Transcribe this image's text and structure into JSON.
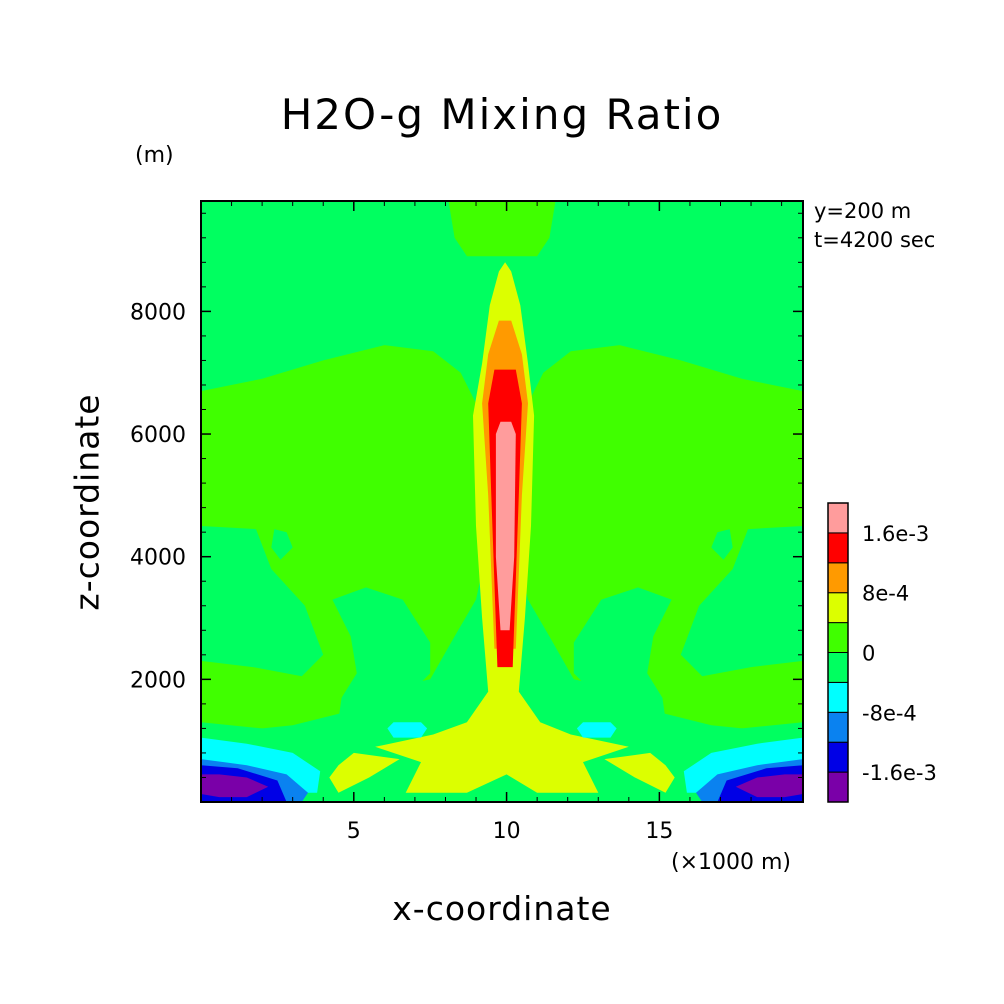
{
  "chart_data": {
    "type": "contour",
    "title": "H2O-g Mixing Ratio",
    "xlabel": "x-coordinate",
    "xunit": "(×1000 m)",
    "ylabel": "z-coordinate",
    "yunit": "(m)",
    "annotations": [
      "y=200 m",
      "t=4200 sec"
    ],
    "xlim": [
      0,
      19.7
    ],
    "ylim": [
      0,
      9800
    ],
    "xticks": [
      5,
      10,
      15
    ],
    "yticks": [
      2000,
      4000,
      6000,
      8000
    ],
    "colorbar": {
      "levels": [
        -0.002,
        -0.0016,
        -0.0012,
        -0.0008,
        -0.0004,
        0,
        0.0004,
        0.0008,
        0.0012,
        0.0016,
        0.002
      ],
      "colors": [
        "#7a00a8",
        "#0000e6",
        "#0a82f0",
        "#00ffff",
        "#00ff60",
        "#40ff00",
        "#dcff00",
        "#ff9a00",
        "#ff0000",
        "#ff9c9c"
      ],
      "tick_labels": [
        "-1.6e-3",
        "-8e-4",
        "0",
        "8e-4",
        "1.6e-3"
      ],
      "tick_values": [
        -0.0016,
        -0.0008,
        0,
        0.0008,
        0.0016
      ]
    },
    "regions": [
      {
        "level": 0,
        "polygon": [
          [
            0,
            6700
          ],
          [
            2,
            6900
          ],
          [
            4,
            7200
          ],
          [
            6,
            7450
          ],
          [
            7.6,
            7350
          ],
          [
            8.5,
            7000
          ],
          [
            9,
            6500
          ],
          [
            9.3,
            5500
          ],
          [
            9.3,
            4000
          ],
          [
            9,
            3300
          ],
          [
            8.3,
            2700
          ],
          [
            7.5,
            2000
          ],
          [
            5.7,
            1800
          ],
          [
            5,
            1500
          ],
          [
            3,
            1250
          ],
          [
            1,
            1150
          ],
          [
            0,
            1150
          ]
        ]
      },
      {
        "level": 0,
        "polygon": [
          [
            19.7,
            6700
          ],
          [
            17.7,
            6900
          ],
          [
            15.7,
            7200
          ],
          [
            13.7,
            7450
          ],
          [
            12.1,
            7350
          ],
          [
            11.2,
            7000
          ],
          [
            10.7,
            6500
          ],
          [
            10.4,
            5500
          ],
          [
            10.4,
            4000
          ],
          [
            10.7,
            3300
          ],
          [
            11.4,
            2700
          ],
          [
            12.2,
            2000
          ],
          [
            14,
            1800
          ],
          [
            14.7,
            1500
          ],
          [
            16.7,
            1250
          ],
          [
            18.7,
            1150
          ],
          [
            19.7,
            1150
          ]
        ]
      },
      {
        "level": 0,
        "polygon": [
          [
            8.1,
            9800
          ],
          [
            8.3,
            9200
          ],
          [
            8.7,
            8900
          ],
          [
            11,
            8900
          ],
          [
            11.4,
            9200
          ],
          [
            11.6,
            9800
          ]
        ]
      },
      {
        "level": 0,
        "polygon": [
          [
            2.3,
            2200
          ],
          [
            3.3,
            2700
          ],
          [
            4.3,
            3100
          ],
          [
            5,
            2700
          ],
          [
            6,
            2500
          ],
          [
            6.6,
            2700
          ],
          [
            7,
            2300
          ],
          [
            6.2,
            1700
          ],
          [
            4.4,
            1900
          ],
          [
            3,
            2100
          ]
        ]
      },
      {
        "level": 0,
        "polygon": [
          [
            17.4,
            2200
          ],
          [
            16.4,
            2700
          ],
          [
            15.4,
            3100
          ],
          [
            14.7,
            2700
          ],
          [
            13.7,
            2500
          ],
          [
            13.1,
            2700
          ],
          [
            12.7,
            2300
          ],
          [
            13.5,
            1700
          ],
          [
            15.3,
            1900
          ],
          [
            16.7,
            2100
          ]
        ]
      },
      {
        "level": -0.0004,
        "polygon": [
          [
            0,
            4500
          ],
          [
            1.8,
            4450
          ],
          [
            2.3,
            3800
          ],
          [
            3.4,
            3200
          ],
          [
            4,
            2400
          ],
          [
            3.3,
            2050
          ],
          [
            1.7,
            2200
          ],
          [
            0,
            2300
          ]
        ]
      },
      {
        "level": -0.0004,
        "polygon": [
          [
            19.7,
            4500
          ],
          [
            17.9,
            4450
          ],
          [
            17.4,
            3800
          ],
          [
            16.3,
            3200
          ],
          [
            15.7,
            2400
          ],
          [
            16.4,
            2050
          ],
          [
            18,
            2200
          ],
          [
            19.7,
            2300
          ]
        ]
      },
      {
        "level": -0.0004,
        "polygon": [
          [
            4.3,
            3300
          ],
          [
            5.4,
            3500
          ],
          [
            6.6,
            3300
          ],
          [
            7.5,
            2600
          ],
          [
            7.5,
            2100
          ],
          [
            6.5,
            1600
          ],
          [
            5.5,
            1300
          ],
          [
            4.5,
            1350
          ],
          [
            4.6,
            1700
          ],
          [
            5.1,
            2100
          ],
          [
            4.9,
            2700
          ]
        ]
      },
      {
        "level": -0.0004,
        "polygon": [
          [
            15.4,
            3300
          ],
          [
            14.3,
            3500
          ],
          [
            13.1,
            3300
          ],
          [
            12.2,
            2600
          ],
          [
            12.2,
            2100
          ],
          [
            13.2,
            1600
          ],
          [
            14.2,
            1300
          ],
          [
            15.2,
            1350
          ],
          [
            15.1,
            1700
          ],
          [
            14.6,
            2100
          ],
          [
            14.8,
            2700
          ]
        ]
      },
      {
        "level": -0.0004,
        "polygon": [
          [
            2.4,
            4450
          ],
          [
            2.8,
            4400
          ],
          [
            3,
            4150
          ],
          [
            2.6,
            3950
          ],
          [
            2.3,
            4150
          ]
        ]
      },
      {
        "level": -0.0004,
        "polygon": [
          [
            17.3,
            4450
          ],
          [
            16.9,
            4400
          ],
          [
            16.7,
            4150
          ],
          [
            17.1,
            3950
          ],
          [
            17.4,
            4150
          ]
        ]
      },
      {
        "level": -0.0004,
        "polygon": [
          [
            0,
            1300
          ],
          [
            2,
            1200
          ],
          [
            3.4,
            1000
          ],
          [
            4,
            700
          ],
          [
            3.2,
            450
          ],
          [
            0,
            450
          ]
        ]
      },
      {
        "level": -0.0004,
        "polygon": [
          [
            19.7,
            1300
          ],
          [
            17.7,
            1200
          ],
          [
            16.3,
            1000
          ],
          [
            15.7,
            700
          ],
          [
            16.5,
            450
          ],
          [
            19.7,
            450
          ]
        ]
      },
      {
        "level": 0.0004,
        "polygon": [
          [
            9.2,
            7150
          ],
          [
            9.45,
            8100
          ],
          [
            9.75,
            8650
          ],
          [
            9.95,
            8800
          ],
          [
            10.15,
            8650
          ],
          [
            10.45,
            8100
          ],
          [
            10.7,
            7150
          ],
          [
            10.9,
            6300
          ],
          [
            10.8,
            4500
          ],
          [
            10.6,
            3000
          ],
          [
            10.4,
            1800
          ],
          [
            11.1,
            1300
          ],
          [
            12.1,
            1100
          ],
          [
            14,
            900
          ],
          [
            12.5,
            650
          ],
          [
            13,
            150
          ],
          [
            11,
            150
          ],
          [
            10,
            450
          ],
          [
            8.7,
            150
          ],
          [
            6.7,
            150
          ],
          [
            7.2,
            650
          ],
          [
            5.7,
            900
          ],
          [
            7.6,
            1100
          ],
          [
            8.7,
            1300
          ],
          [
            9.4,
            1800
          ],
          [
            9.2,
            3000
          ],
          [
            9,
            4500
          ],
          [
            8.9,
            6300
          ]
        ]
      },
      {
        "level": 0.0004,
        "polygon": [
          [
            4.5,
            600
          ],
          [
            5,
            800
          ],
          [
            6.5,
            700
          ],
          [
            5.5,
            400
          ],
          [
            4.5,
            150
          ],
          [
            4.2,
            400
          ]
        ]
      },
      {
        "level": 0.0004,
        "polygon": [
          [
            15.2,
            600
          ],
          [
            14.7,
            800
          ],
          [
            13.2,
            700
          ],
          [
            14.2,
            400
          ],
          [
            15.2,
            150
          ],
          [
            15.5,
            400
          ]
        ]
      },
      {
        "level": 0.0008,
        "polygon": [
          [
            9.2,
            6500
          ],
          [
            9.4,
            7300
          ],
          [
            9.75,
            7850
          ],
          [
            10.15,
            7850
          ],
          [
            10.5,
            7300
          ],
          [
            10.7,
            6500
          ],
          [
            10.5,
            5000
          ],
          [
            10.3,
            2500
          ],
          [
            9.6,
            2500
          ],
          [
            9.4,
            5000
          ]
        ]
      },
      {
        "level": 0.0012,
        "polygon": [
          [
            9.4,
            6500
          ],
          [
            9.6,
            7050
          ],
          [
            10.3,
            7050
          ],
          [
            10.5,
            6500
          ],
          [
            10.4,
            5000
          ],
          [
            10.2,
            2200
          ],
          [
            9.7,
            2200
          ],
          [
            9.5,
            5000
          ]
        ]
      },
      {
        "level": 0.0016,
        "polygon": [
          [
            9.65,
            6000
          ],
          [
            9.8,
            6200
          ],
          [
            10.15,
            6200
          ],
          [
            10.3,
            6000
          ],
          [
            10.25,
            4000
          ],
          [
            10.1,
            2800
          ],
          [
            9.8,
            2800
          ],
          [
            9.65,
            4000
          ]
        ]
      },
      {
        "level": -0.0008,
        "polygon": [
          [
            6.1,
            1200
          ],
          [
            6.3,
            1300
          ],
          [
            7.2,
            1300
          ],
          [
            7.4,
            1200
          ],
          [
            7.2,
            1050
          ],
          [
            6.3,
            1050
          ]
        ]
      },
      {
        "level": -0.0008,
        "polygon": [
          [
            12.3,
            1200
          ],
          [
            12.5,
            1300
          ],
          [
            13.4,
            1300
          ],
          [
            13.6,
            1200
          ],
          [
            13.4,
            1050
          ],
          [
            12.5,
            1050
          ]
        ]
      },
      {
        "level": -0.0008,
        "polygon": [
          [
            0,
            1050
          ],
          [
            1.5,
            950
          ],
          [
            3,
            800
          ],
          [
            3.9,
            500
          ],
          [
            3.8,
            150
          ],
          [
            0,
            150
          ]
        ]
      },
      {
        "level": -0.0008,
        "polygon": [
          [
            19.7,
            1050
          ],
          [
            18.2,
            950
          ],
          [
            16.7,
            800
          ],
          [
            15.8,
            500
          ],
          [
            15.9,
            150
          ],
          [
            19.7,
            150
          ]
        ]
      },
      {
        "level": -0.0012,
        "polygon": [
          [
            0,
            700
          ],
          [
            1.5,
            600
          ],
          [
            2.8,
            450
          ],
          [
            3.5,
            150
          ],
          [
            3.3,
            0
          ],
          [
            0,
            0
          ]
        ]
      },
      {
        "level": -0.0012,
        "polygon": [
          [
            19.7,
            700
          ],
          [
            18.2,
            600
          ],
          [
            16.9,
            450
          ],
          [
            16.2,
            150
          ],
          [
            16.4,
            0
          ],
          [
            19.7,
            0
          ]
        ]
      },
      {
        "level": -0.0016,
        "polygon": [
          [
            0,
            600
          ],
          [
            1.2,
            550
          ],
          [
            2.5,
            350
          ],
          [
            2.8,
            0
          ],
          [
            0,
            0
          ]
        ]
      },
      {
        "level": -0.0016,
        "polygon": [
          [
            19.7,
            600
          ],
          [
            18.5,
            550
          ],
          [
            17.2,
            350
          ],
          [
            16.9,
            0
          ],
          [
            19.7,
            0
          ]
        ]
      },
      {
        "level": -0.002,
        "polygon": [
          [
            0,
            450
          ],
          [
            0.6,
            450
          ],
          [
            1.5,
            400
          ],
          [
            2.2,
            250
          ],
          [
            1.5,
            80
          ],
          [
            0.6,
            80
          ],
          [
            0,
            130
          ]
        ]
      },
      {
        "level": -0.002,
        "polygon": [
          [
            19.7,
            450
          ],
          [
            19.1,
            450
          ],
          [
            18.2,
            400
          ],
          [
            17.5,
            250
          ],
          [
            18.2,
            80
          ],
          [
            19.1,
            80
          ],
          [
            19.7,
            130
          ]
        ]
      }
    ]
  }
}
